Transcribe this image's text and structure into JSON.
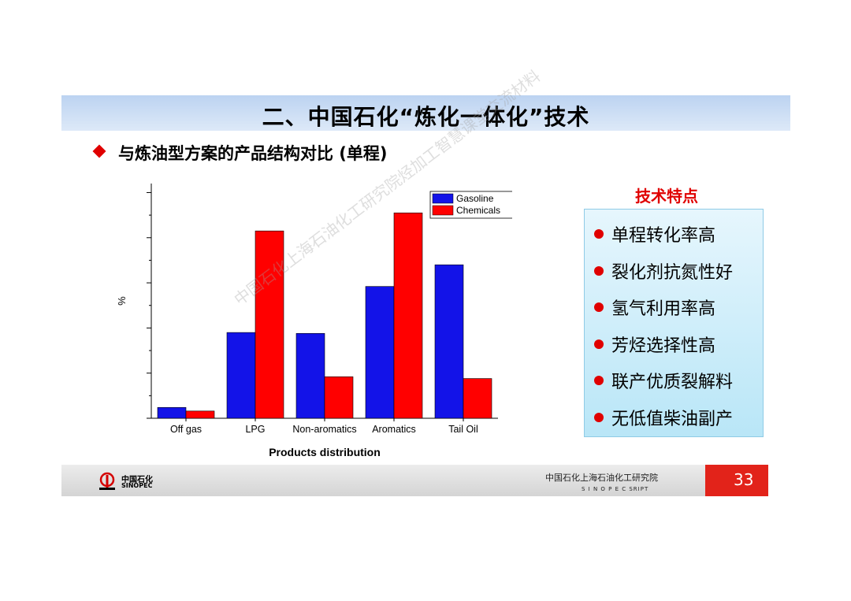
{
  "slide": {
    "title": "二、中国石化“炼化一体化”技术",
    "subtitle": "与炼油型方案的产品结构对比 (单程)",
    "watermark": "中国石化上海石油化工研究院烃加工智慧课堂交流材料"
  },
  "features": {
    "title": "技术特点",
    "items": [
      "单程转化率高",
      "裂化剂抗氮性好",
      "氢气利用率高",
      "芳烃选择性高",
      "联产优质裂解料",
      "无低值柴油副产"
    ],
    "bullet_color": "#e00000"
  },
  "chart_data": {
    "type": "bar",
    "categories": [
      "Off gas",
      "LPG",
      "Non-aromatics",
      "Aromatics",
      "Tail Oil"
    ],
    "series": [
      {
        "name": "Gasoline",
        "values": [
          2.4,
          19,
          18.8,
          29.2,
          34
        ],
        "color": "#1313e8"
      },
      {
        "name": "Chemicals",
        "values": [
          1.6,
          41.5,
          9.2,
          45.5,
          8.8
        ],
        "color": "#ff0000"
      }
    ],
    "xlabel": "Products distribution",
    "ylabel": "%",
    "ylim": [
      0,
      52
    ],
    "y_ticks": [
      0,
      10,
      20,
      30,
      40,
      50
    ],
    "legend_position": "top-right",
    "grid": false
  },
  "footer": {
    "logo_cn": "中国石化",
    "logo_en": "SINOPEC",
    "org_cn": "中国石化上海石油化工研究院",
    "org_en": "S I N O P E C  SRIPT",
    "page_number": "33"
  }
}
